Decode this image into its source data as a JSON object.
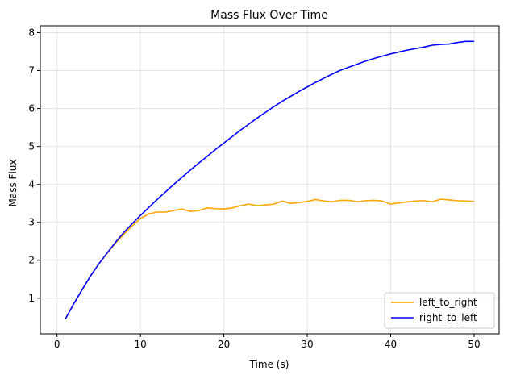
{
  "chart_data": {
    "type": "line",
    "title": "Mass Flux Over Time",
    "xlabel": "Time (s)",
    "ylabel": "Mass Flux",
    "xlim": [
      -2,
      53
    ],
    "ylim": [
      0.06,
      8.18
    ],
    "x_ticks": [
      0,
      10,
      20,
      30,
      40,
      50
    ],
    "y_ticks": [
      1,
      2,
      3,
      4,
      5,
      6,
      7,
      8
    ],
    "grid": true,
    "legend_position": "lower right",
    "series": [
      {
        "name": "left_to_right",
        "color": "#FFA500",
        "x": [
          1,
          2,
          3,
          4,
          5,
          6,
          7,
          8,
          9,
          10,
          11,
          12,
          13,
          14,
          15,
          16,
          17,
          18,
          19,
          20,
          21,
          22,
          23,
          24,
          25,
          26,
          27,
          28,
          29,
          30,
          31,
          32,
          33,
          34,
          35,
          36,
          37,
          38,
          39,
          40,
          41,
          42,
          43,
          44,
          45,
          46,
          47,
          48,
          49,
          50
        ],
        "y": [
          0.45,
          0.85,
          1.22,
          1.58,
          1.9,
          2.18,
          2.45,
          2.68,
          2.9,
          3.1,
          3.22,
          3.27,
          3.27,
          3.31,
          3.35,
          3.29,
          3.31,
          3.38,
          3.36,
          3.35,
          3.38,
          3.44,
          3.48,
          3.44,
          3.46,
          3.48,
          3.56,
          3.5,
          3.52,
          3.55,
          3.6,
          3.56,
          3.54,
          3.58,
          3.58,
          3.54,
          3.57,
          3.58,
          3.56,
          3.48,
          3.51,
          3.54,
          3.56,
          3.57,
          3.54,
          3.61,
          3.59,
          3.57,
          3.56,
          3.55
        ]
      },
      {
        "name": "right_to_left",
        "color": "#0000FF",
        "x": [
          1,
          2,
          3,
          4,
          5,
          6,
          7,
          8,
          9,
          10,
          11,
          12,
          13,
          14,
          15,
          16,
          17,
          18,
          19,
          20,
          21,
          22,
          23,
          24,
          25,
          26,
          27,
          28,
          29,
          30,
          31,
          32,
          33,
          34,
          35,
          36,
          37,
          38,
          39,
          40,
          41,
          42,
          43,
          44,
          45,
          46,
          47,
          48,
          49,
          50
        ],
        "y": [
          0.45,
          0.85,
          1.22,
          1.58,
          1.9,
          2.19,
          2.47,
          2.73,
          2.96,
          3.18,
          3.39,
          3.6,
          3.8,
          4.0,
          4.19,
          4.38,
          4.56,
          4.74,
          4.92,
          5.09,
          5.26,
          5.43,
          5.59,
          5.75,
          5.9,
          6.05,
          6.19,
          6.32,
          6.45,
          6.57,
          6.69,
          6.8,
          6.91,
          7.01,
          7.09,
          7.17,
          7.25,
          7.32,
          7.38,
          7.44,
          7.49,
          7.54,
          7.58,
          7.62,
          7.67,
          7.69,
          7.7,
          7.74,
          7.77,
          7.77
        ]
      }
    ]
  }
}
